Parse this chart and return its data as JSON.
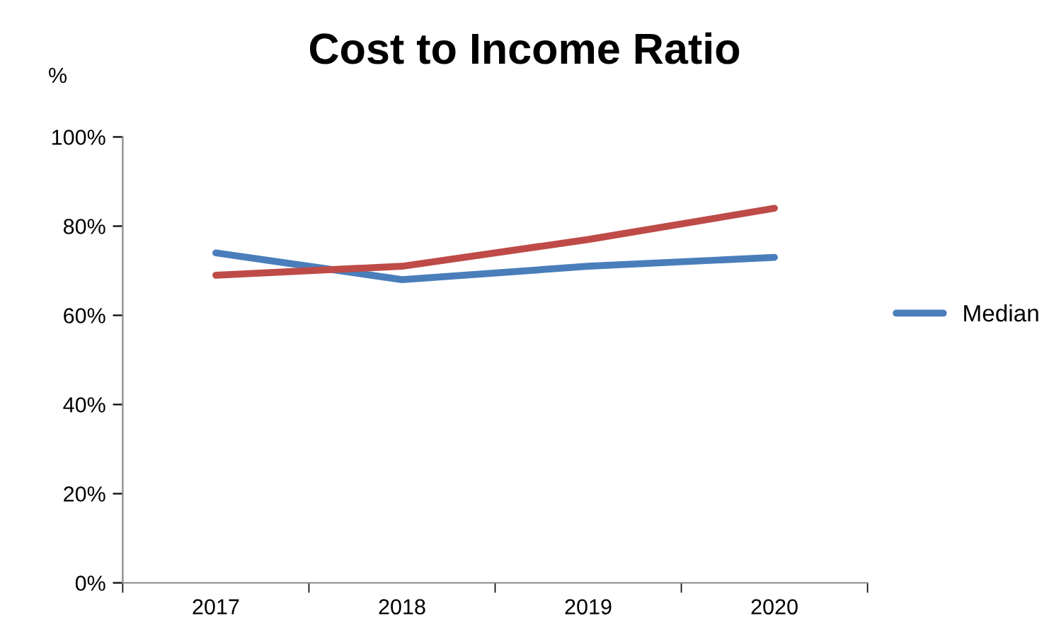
{
  "chart_data": {
    "type": "line",
    "title": "Cost to Income Ratio",
    "ylabel": "%",
    "categories": [
      "2017",
      "2018",
      "2019",
      "2020"
    ],
    "series": [
      {
        "name": "Median",
        "color": "#4a7ebb",
        "values": [
          74,
          68,
          71,
          73
        ]
      },
      {
        "color": "#be4b48",
        "values": [
          69,
          71,
          77,
          84
        ]
      }
    ],
    "ylim": [
      0,
      100
    ],
    "yticks": [
      {
        "value": 0,
        "label": "0%"
      },
      {
        "value": 20,
        "label": "20%"
      },
      {
        "value": 40,
        "label": "40%"
      },
      {
        "value": 60,
        "label": "60%"
      },
      {
        "value": 80,
        "label": "80%"
      },
      {
        "value": 100,
        "label": "100%"
      }
    ],
    "grid": false,
    "legend": "right",
    "marker": "none",
    "line_style": "solid"
  }
}
